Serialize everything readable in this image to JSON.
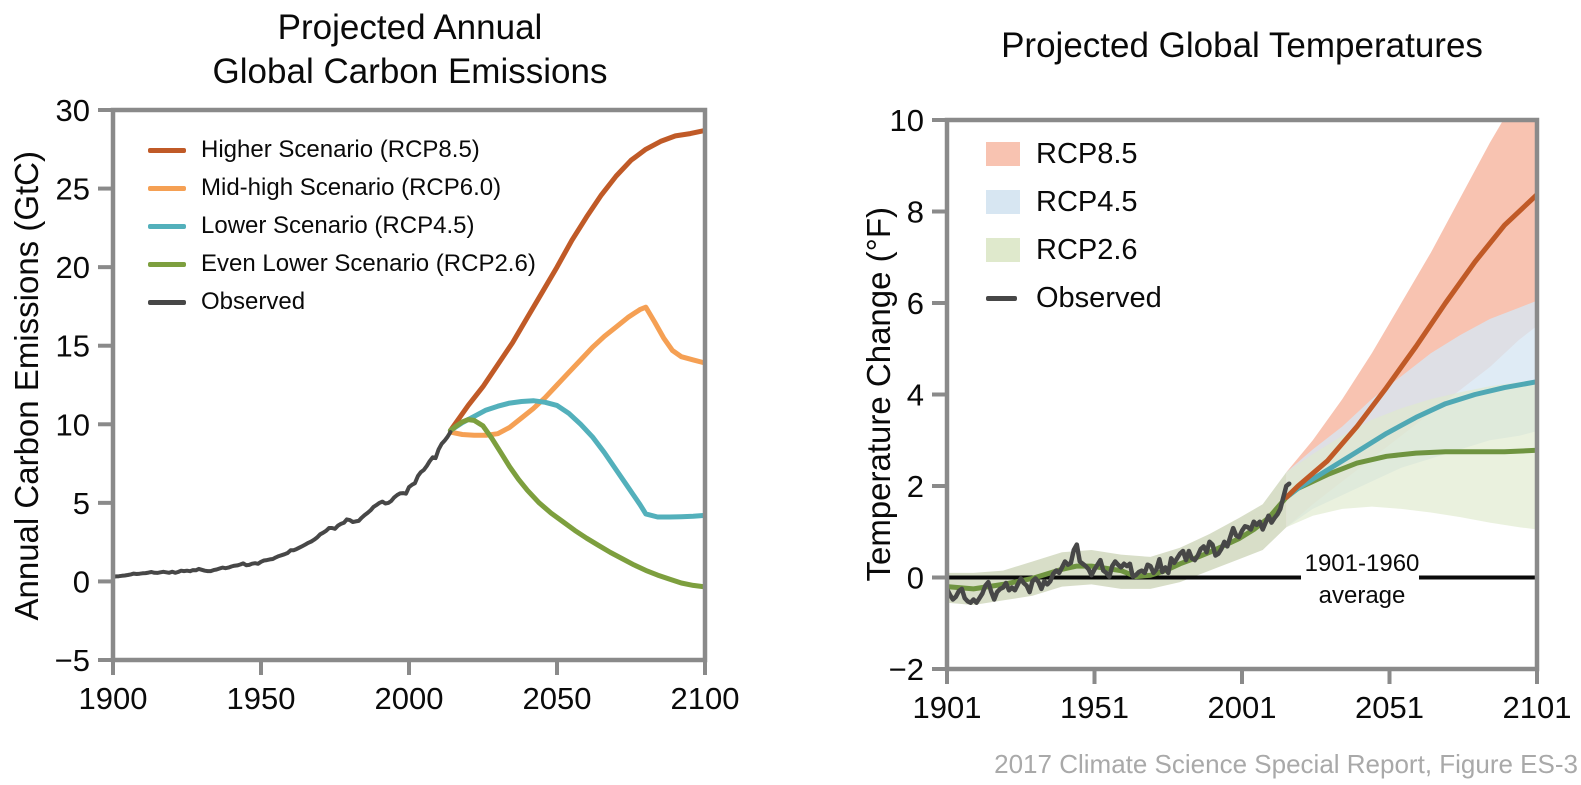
{
  "figure": {
    "footer": "2017 Climate Science Special Report, Figure ES-3",
    "colors": {
      "axis_gray": "#8a8a8a",
      "observed": "#474747",
      "rcp85_line": "#c05a27",
      "rcp60_line": "#f5a054",
      "rcp45_line": "#53b0bb",
      "rcp26_line": "#7d9f3e",
      "rcp85_band": "#f8c3b1",
      "rcp45_band": "#d7e6f2",
      "rcp26_band": "#dfe9cc",
      "zero_line": "#0a0a0a"
    }
  },
  "chart_data": [
    {
      "type": "line",
      "title": "Projected Annual Global Carbon Emissions",
      "title_line1": "Projected Annual",
      "title_line2": "Global Carbon Emissions",
      "ylabel": "Annual Carbon Emissions (GtC)",
      "xlim": [
        1900,
        2100
      ],
      "ylim": [
        -5,
        30
      ],
      "grid": false,
      "legend_position": "top-left-inside",
      "x_ticks": [
        {
          "v": 1900,
          "label": "1900"
        },
        {
          "v": 1950,
          "label": "1950"
        },
        {
          "v": 2000,
          "label": "2000"
        },
        {
          "v": 2050,
          "label": "2050"
        },
        {
          "v": 2100,
          "label": "2100"
        }
      ],
      "y_ticks": [
        {
          "v": 30,
          "label": "30"
        },
        {
          "v": 25,
          "label": "25"
        },
        {
          "v": 20,
          "label": "20"
        },
        {
          "v": 15,
          "label": "15"
        },
        {
          "v": 10,
          "label": "10"
        },
        {
          "v": 5,
          "label": "5"
        },
        {
          "v": 0,
          "label": "0"
        },
        {
          "v": -5,
          "label": "−5"
        }
      ],
      "legend": [
        {
          "label": "Higher Scenario (RCP8.5)",
          "color": "#c05a27",
          "type": "line"
        },
        {
          "label": "Mid-high Scenario (RCP6.0)",
          "color": "#f5a054",
          "type": "line"
        },
        {
          "label": "Lower Scenario (RCP4.5)",
          "color": "#53b0bb",
          "type": "line"
        },
        {
          "label": "Even Lower Scenario (RCP2.6)",
          "color": "#7d9f3e",
          "type": "line"
        },
        {
          "label": "Observed",
          "color": "#474747",
          "type": "line"
        }
      ],
      "series": [
        {
          "name": "Higher Scenario (RCP8.5)",
          "color": "#c05a27",
          "width": 5,
          "x": [
            2014,
            2020,
            2025,
            2030,
            2035,
            2040,
            2045,
            2050,
            2055,
            2060,
            2065,
            2070,
            2075,
            2080,
            2085,
            2090,
            2095,
            2100
          ],
          "y": [
            9.6,
            11.2,
            12.4,
            13.8,
            15.2,
            16.8,
            18.4,
            20.0,
            21.7,
            23.2,
            24.6,
            25.8,
            26.8,
            27.5,
            28.0,
            28.35,
            28.5,
            28.7
          ]
        },
        {
          "name": "Mid-high Scenario (RCP6.0)",
          "color": "#f5a054",
          "width": 5,
          "x": [
            2014,
            2018,
            2022,
            2026,
            2030,
            2034,
            2038,
            2042,
            2046,
            2050,
            2054,
            2058,
            2062,
            2066,
            2070,
            2074,
            2078,
            2080,
            2083,
            2086,
            2089,
            2092,
            2096,
            2100
          ],
          "y": [
            9.5,
            9.35,
            9.3,
            9.3,
            9.4,
            9.8,
            10.4,
            11.0,
            11.7,
            12.5,
            13.3,
            14.1,
            14.9,
            15.6,
            16.2,
            16.8,
            17.3,
            17.45,
            16.5,
            15.5,
            14.7,
            14.3,
            14.1,
            13.9
          ]
        },
        {
          "name": "Lower Scenario (RCP4.5)",
          "color": "#53b0bb",
          "width": 5,
          "x": [
            2014,
            2018,
            2022,
            2026,
            2030,
            2034,
            2038,
            2042,
            2046,
            2050,
            2054,
            2058,
            2062,
            2066,
            2070,
            2074,
            2078,
            2080,
            2084,
            2088,
            2092,
            2096,
            2100
          ],
          "y": [
            9.6,
            10.1,
            10.5,
            10.9,
            11.15,
            11.35,
            11.45,
            11.5,
            11.4,
            11.2,
            10.7,
            10.0,
            9.2,
            8.2,
            7.1,
            6.0,
            4.9,
            4.3,
            4.1,
            4.1,
            4.12,
            4.15,
            4.2
          ]
        },
        {
          "name": "Even Lower Scenario (RCP2.6)",
          "color": "#7d9f3e",
          "width": 5,
          "x": [
            2014,
            2016,
            2018,
            2020,
            2022,
            2025,
            2028,
            2031,
            2034,
            2037,
            2040,
            2044,
            2048,
            2052,
            2056,
            2060,
            2064,
            2068,
            2072,
            2076,
            2080,
            2084,
            2088,
            2092,
            2096,
            2100
          ],
          "y": [
            9.6,
            9.9,
            10.15,
            10.3,
            10.25,
            9.9,
            9.1,
            8.2,
            7.3,
            6.5,
            5.8,
            5.0,
            4.35,
            3.8,
            3.25,
            2.75,
            2.3,
            1.85,
            1.45,
            1.05,
            0.7,
            0.4,
            0.15,
            -0.1,
            -0.25,
            -0.35
          ]
        },
        {
          "name": "Observed",
          "color": "#474747",
          "width": 4,
          "x0": 1900,
          "y": [
            0.3,
            0.32,
            0.33,
            0.36,
            0.38,
            0.41,
            0.45,
            0.5,
            0.47,
            0.49,
            0.52,
            0.53,
            0.56,
            0.6,
            0.55,
            0.54,
            0.58,
            0.61,
            0.58,
            0.55,
            0.62,
            0.55,
            0.6,
            0.68,
            0.66,
            0.68,
            0.65,
            0.72,
            0.71,
            0.8,
            0.74,
            0.68,
            0.66,
            0.66,
            0.72,
            0.76,
            0.82,
            0.88,
            0.84,
            0.88,
            0.95,
            1.0,
            1.02,
            1.08,
            1.15,
            1.03,
            1.05,
            1.13,
            1.16,
            1.12,
            1.25,
            1.33,
            1.36,
            1.4,
            1.43,
            1.53,
            1.61,
            1.67,
            1.73,
            1.81,
            1.98,
            1.99,
            2.06,
            2.15,
            2.25,
            2.35,
            2.46,
            2.54,
            2.66,
            2.8,
            3.0,
            3.1,
            3.22,
            3.4,
            3.4,
            3.35,
            3.55,
            3.66,
            3.73,
            3.95,
            3.9,
            3.78,
            3.82,
            3.85,
            4.05,
            4.22,
            4.36,
            4.52,
            4.74,
            4.86,
            5.0,
            5.08,
            4.96,
            5.0,
            5.12,
            5.35,
            5.5,
            5.6,
            5.62,
            5.58,
            6.0,
            6.15,
            6.25,
            6.7,
            6.95,
            7.1,
            7.35,
            7.65,
            7.9,
            7.85,
            8.4,
            8.75,
            8.95,
            9.2,
            9.5
          ]
        }
      ]
    },
    {
      "type": "line+band",
      "title": "Projected Global Temperatures",
      "ylabel": "Temperature Change (°F)",
      "xlim": [
        1901,
        2101
      ],
      "ylim": [
        -2,
        10
      ],
      "grid": false,
      "legend_position": "top-left-inside",
      "x_ticks": [
        {
          "v": 1901,
          "label": "1901"
        },
        {
          "v": 1951,
          "label": "1951"
        },
        {
          "v": 2001,
          "label": "2001"
        },
        {
          "v": 2051,
          "label": "2051"
        },
        {
          "v": 2101,
          "label": "2101"
        }
      ],
      "y_ticks": [
        {
          "v": 10,
          "label": "10"
        },
        {
          "v": 8,
          "label": "8"
        },
        {
          "v": 6,
          "label": "6"
        },
        {
          "v": 4,
          "label": "4"
        },
        {
          "v": 2,
          "label": "2"
        },
        {
          "v": 0,
          "label": "0"
        },
        {
          "v": -2,
          "label": "−2"
        }
      ],
      "legend": [
        {
          "label": "RCP8.5",
          "color": "#f8c3b1",
          "type": "patch"
        },
        {
          "label": "RCP4.5",
          "color": "#d7e6f2",
          "type": "patch"
        },
        {
          "label": "RCP2.6",
          "color": "#dfe9cc",
          "type": "patch"
        },
        {
          "label": "Observed",
          "color": "#474747",
          "type": "line"
        }
      ],
      "zero_line": {
        "value": 0,
        "label_line1": "1901-1960",
        "label_line2": "average",
        "gap": [
          2021,
          2061
        ]
      },
      "bands": [
        {
          "name": "Model hindcast range",
          "color": "#d6dcc5",
          "opacity": 0.95,
          "x": [
            1901,
            1910,
            1920,
            1930,
            1940,
            1950,
            1960,
            1970,
            1980,
            1990,
            2000,
            2008,
            2016
          ],
          "lower": [
            -0.55,
            -0.6,
            -0.5,
            -0.4,
            -0.2,
            -0.15,
            -0.25,
            -0.25,
            -0.1,
            0.15,
            0.4,
            0.6,
            1.1
          ],
          "upper": [
            0.1,
            0.1,
            0.15,
            0.35,
            0.55,
            0.6,
            0.5,
            0.45,
            0.65,
            0.95,
            1.3,
            1.6,
            2.3
          ]
        },
        {
          "name": "RCP8.5 range",
          "color": "#f8c3b1",
          "opacity": 1,
          "x": [
            2016,
            2025,
            2035,
            2045,
            2055,
            2065,
            2075,
            2085,
            2095,
            2101
          ],
          "lower": [
            1.1,
            1.6,
            2.1,
            2.6,
            3.1,
            3.6,
            4.1,
            4.6,
            5.2,
            5.5
          ],
          "upper": [
            2.3,
            3.0,
            3.9,
            4.9,
            6.0,
            7.1,
            8.3,
            9.5,
            10.6,
            11.2
          ]
        },
        {
          "name": "RCP4.5 range",
          "color": "#d7e6f2",
          "opacity": 0.8,
          "x": [
            2016,
            2025,
            2035,
            2045,
            2055,
            2065,
            2075,
            2085,
            2095,
            2101
          ],
          "lower": [
            1.1,
            1.5,
            1.8,
            2.1,
            2.4,
            2.6,
            2.8,
            3.0,
            3.1,
            3.2
          ],
          "upper": [
            2.3,
            2.8,
            3.3,
            3.9,
            4.4,
            4.9,
            5.3,
            5.65,
            5.9,
            6.05
          ]
        },
        {
          "name": "RCP2.6 range",
          "color": "#dfe9cc",
          "opacity": 0.65,
          "x": [
            2016,
            2025,
            2035,
            2045,
            2055,
            2065,
            2075,
            2085,
            2095,
            2101
          ],
          "lower": [
            1.1,
            1.35,
            1.5,
            1.55,
            1.5,
            1.42,
            1.32,
            1.2,
            1.1,
            1.05
          ],
          "upper": [
            2.3,
            2.7,
            3.1,
            3.45,
            3.7,
            3.9,
            4.05,
            4.18,
            4.27,
            4.3
          ]
        }
      ],
      "series": [
        {
          "name": "RCP2.6 median",
          "color": "#6f9440",
          "width": 5,
          "x": [
            1901,
            1910,
            1920,
            1930,
            1940,
            1945,
            1950,
            1955,
            1960,
            1965,
            1970,
            1975,
            1980,
            1985,
            1990,
            1995,
            2000,
            2005,
            2010,
            2016,
            2020,
            2030,
            2040,
            2050,
            2060,
            2070,
            2080,
            2090,
            2101
          ],
          "y": [
            -0.2,
            -0.25,
            -0.15,
            -0.02,
            0.18,
            0.25,
            0.25,
            0.2,
            0.15,
            0.02,
            0.05,
            0.15,
            0.3,
            0.42,
            0.55,
            0.7,
            0.85,
            1.05,
            1.3,
            1.75,
            1.95,
            2.25,
            2.5,
            2.65,
            2.72,
            2.75,
            2.75,
            2.75,
            2.78
          ]
        },
        {
          "name": "RCP4.5 median",
          "color": "#4fa8b4",
          "width": 5,
          "x": [
            2016,
            2020,
            2030,
            2040,
            2050,
            2060,
            2070,
            2080,
            2090,
            2101
          ],
          "y": [
            1.75,
            1.95,
            2.35,
            2.75,
            3.15,
            3.5,
            3.8,
            4.0,
            4.15,
            4.28
          ]
        },
        {
          "name": "RCP8.5 median",
          "color": "#c05a27",
          "width": 5,
          "x": [
            2016,
            2020,
            2030,
            2040,
            2050,
            2060,
            2070,
            2080,
            2090,
            2101
          ],
          "y": [
            1.75,
            2.0,
            2.55,
            3.3,
            4.15,
            5.05,
            6.0,
            6.9,
            7.7,
            8.37
          ]
        },
        {
          "name": "Observed",
          "color": "#474747",
          "width": 4.5,
          "x0": 1901,
          "y": [
            -0.25,
            -0.38,
            -0.48,
            -0.42,
            -0.3,
            -0.25,
            -0.45,
            -0.52,
            -0.55,
            -0.48,
            -0.55,
            -0.45,
            -0.35,
            -0.18,
            -0.1,
            -0.32,
            -0.48,
            -0.32,
            -0.25,
            -0.22,
            -0.12,
            -0.28,
            -0.22,
            -0.28,
            -0.15,
            -0.02,
            -0.12,
            -0.18,
            -0.32,
            -0.08,
            -0.02,
            -0.1,
            -0.25,
            -0.08,
            -0.15,
            -0.08,
            0.08,
            0.15,
            0.1,
            0.22,
            0.35,
            0.28,
            0.32,
            0.6,
            0.72,
            0.35,
            0.3,
            0.25,
            0.18,
            0.05,
            0.18,
            0.28,
            0.38,
            0.15,
            0.1,
            0.02,
            0.25,
            0.35,
            0.28,
            0.22,
            0.3,
            0.25,
            0.3,
            0.02,
            0.05,
            0.12,
            0.15,
            0.1,
            0.28,
            0.25,
            0.1,
            0.18,
            0.4,
            0.12,
            0.22,
            0.1,
            0.42,
            0.32,
            0.42,
            0.52,
            0.58,
            0.38,
            0.58,
            0.42,
            0.38,
            0.48,
            0.62,
            0.68,
            0.55,
            0.78,
            0.72,
            0.48,
            0.52,
            0.62,
            0.78,
            0.68,
            0.88,
            1.08,
            0.92,
            0.88,
            1.02,
            1.12,
            1.1,
            1.05,
            1.22,
            1.15,
            1.22,
            1.05,
            1.2,
            1.35,
            1.2,
            1.3,
            1.38,
            1.5,
            1.75,
            2.0,
            2.05
          ]
        }
      ]
    }
  ]
}
